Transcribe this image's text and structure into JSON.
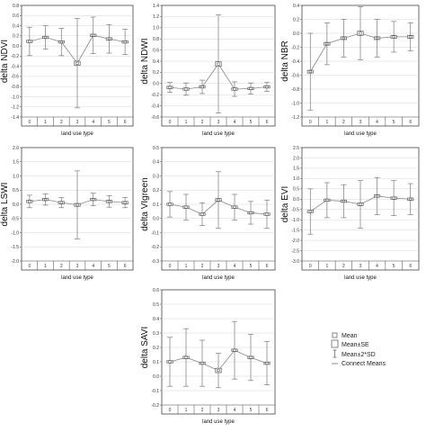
{
  "chart_data": [
    {
      "type": "line",
      "ylabel": "delta NDVI",
      "xlabel": "land use type",
      "categories": [
        "0",
        "1",
        "2",
        "3",
        "4",
        "5",
        "6"
      ],
      "ylim": [
        -1.4,
        0.8
      ],
      "yticks": [
        "0.8",
        "0.6",
        "0.4",
        "0.2",
        "0.0",
        "-0.2",
        "-0.4",
        "-0.6",
        "-0.8",
        "-1.0",
        "-1.2",
        "-1.4"
      ],
      "mean": [
        0.09,
        0.17,
        0.08,
        -0.34,
        0.21,
        0.14,
        0.08
      ],
      "se_half": [
        0.02,
        0.02,
        0.02,
        0.04,
        0.02,
        0.02,
        0.02
      ],
      "sd2_half": [
        0.28,
        0.23,
        0.27,
        0.88,
        0.36,
        0.28,
        0.25
      ]
    },
    {
      "type": "line",
      "ylabel": "delta NDWI",
      "xlabel": "land use type",
      "categories": [
        "0",
        "1",
        "2",
        "3",
        "4",
        "5",
        "6"
      ],
      "ylim": [
        -0.6,
        1.4
      ],
      "yticks": [
        "1.4",
        "1.2",
        "1.0",
        "0.8",
        "0.6",
        "0.4",
        "0.2",
        "0.0",
        "-0.2",
        "-0.4",
        "-0.6"
      ],
      "mean": [
        -0.07,
        -0.1,
        -0.06,
        0.35,
        -0.1,
        -0.09,
        -0.06
      ],
      "se_half": [
        0.02,
        0.02,
        0.02,
        0.04,
        0.02,
        0.02,
        0.02
      ],
      "sd2_half": [
        0.09,
        0.11,
        0.12,
        0.88,
        0.13,
        0.1,
        0.08
      ]
    },
    {
      "type": "line",
      "ylabel": "delta NBR",
      "xlabel": "land use type",
      "categories": [
        "0",
        "1",
        "2",
        "3",
        "4",
        "5",
        "6"
      ],
      "ylim": [
        -1.2,
        0.4
      ],
      "yticks": [
        "0.4",
        "0.2",
        "0.0",
        "-0.2",
        "-0.4",
        "-0.6",
        "-0.8",
        "-1.0",
        "-1.2"
      ],
      "mean": [
        -0.55,
        -0.15,
        -0.07,
        0.0,
        -0.07,
        -0.05,
        -0.05
      ],
      "se_half": [
        0.02,
        0.02,
        0.02,
        0.03,
        0.02,
        0.02,
        0.02
      ],
      "sd2_half": [
        0.55,
        0.3,
        0.27,
        0.38,
        0.27,
        0.22,
        0.2
      ]
    },
    {
      "type": "line",
      "ylabel": "delta LSWI",
      "xlabel": "land use type",
      "categories": [
        "0",
        "1",
        "2",
        "3",
        "4",
        "5",
        "6"
      ],
      "ylim": [
        -2.0,
        2.0
      ],
      "yticks": [
        "2.0",
        "1.5",
        "1.0",
        "0.5",
        "0.0",
        "-0.5",
        "-1.0",
        "-1.5",
        "-2.0"
      ],
      "mean": [
        0.1,
        0.17,
        0.06,
        -0.02,
        0.17,
        0.1,
        0.06
      ],
      "se_half": [
        0.03,
        0.03,
        0.03,
        0.05,
        0.03,
        0.03,
        0.03
      ],
      "sd2_half": [
        0.22,
        0.2,
        0.18,
        1.2,
        0.22,
        0.2,
        0.18
      ]
    },
    {
      "type": "line",
      "ylabel": "delta VIgreen",
      "xlabel": "land use type",
      "categories": [
        "0",
        "1",
        "2",
        "3",
        "4",
        "5",
        "6"
      ],
      "ylim": [
        -0.3,
        0.5
      ],
      "yticks": [
        "0.5",
        "0.4",
        "0.3",
        "0.2",
        "0.1",
        "0.0",
        "-0.1",
        "-0.2",
        "-0.3"
      ],
      "mean": [
        0.1,
        0.08,
        0.03,
        0.13,
        0.08,
        0.04,
        0.03
      ],
      "se_half": [
        0.005,
        0.005,
        0.005,
        0.01,
        0.005,
        0.005,
        0.005
      ],
      "sd2_half": [
        0.09,
        0.09,
        0.08,
        0.2,
        0.09,
        0.08,
        0.1
      ]
    },
    {
      "type": "line",
      "ylabel": "delta EVI",
      "xlabel": "land use type",
      "categories": [
        "0",
        "1",
        "2",
        "3",
        "4",
        "5",
        "6"
      ],
      "ylim": [
        -3.0,
        2.5
      ],
      "yticks": [
        "2.5",
        "2.0",
        "1.5",
        "1.0",
        "0.5",
        "0.0",
        "-0.5",
        "-1.0",
        "-1.5",
        "-2.0",
        "-2.5",
        "-3.0"
      ],
      "mean": [
        -0.6,
        -0.05,
        -0.1,
        -0.25,
        0.15,
        0.05,
        0.0
      ],
      "se_half": [
        0.05,
        0.05,
        0.05,
        0.06,
        0.05,
        0.05,
        0.05
      ],
      "sd2_half": [
        1.1,
        0.85,
        0.8,
        1.15,
        0.9,
        0.85,
        0.75
      ]
    },
    {
      "type": "line",
      "ylabel": "delta SAVI",
      "xlabel": "land use type",
      "categories": [
        "0",
        "1",
        "2",
        "3",
        "4",
        "5",
        "6"
      ],
      "ylim": [
        -0.2,
        0.6
      ],
      "yticks": [
        "0.6",
        "0.5",
        "0.4",
        "0.3",
        "0.2",
        "0.1",
        "0.0",
        "-0.1",
        "-0.2"
      ],
      "mean": [
        0.1,
        0.13,
        0.09,
        0.04,
        0.18,
        0.13,
        0.09
      ],
      "se_half": [
        0.005,
        0.005,
        0.005,
        0.015,
        0.005,
        0.005,
        0.005
      ],
      "sd2_half": [
        0.17,
        0.2,
        0.16,
        0.12,
        0.2,
        0.16,
        0.15
      ]
    }
  ],
  "legend": [
    {
      "label": "Mean",
      "symbol": "point"
    },
    {
      "label": "Mean±SE",
      "symbol": "box"
    },
    {
      "label": "Mean±2*SD",
      "symbol": "whisker"
    },
    {
      "label": "Connect Means",
      "symbol": "line"
    }
  ]
}
